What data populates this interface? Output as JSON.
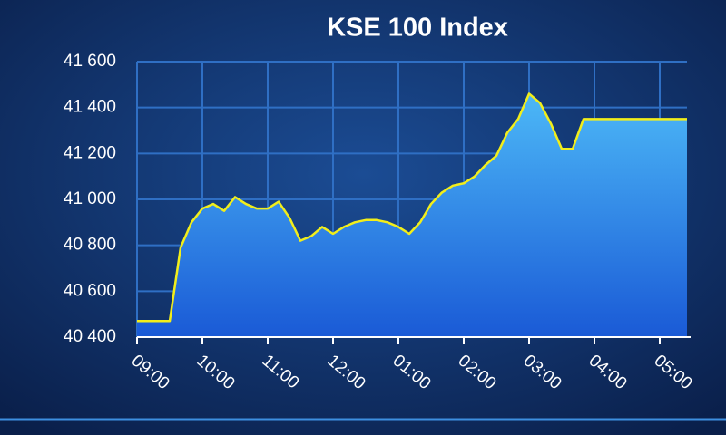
{
  "chart_data": {
    "type": "area",
    "title": "KSE 100 Index",
    "categories": [
      "09:00",
      null,
      null,
      null,
      null,
      null,
      "10:00",
      null,
      null,
      null,
      null,
      null,
      "11:00",
      null,
      null,
      null,
      null,
      null,
      "12:00",
      null,
      null,
      null,
      null,
      null,
      "01:00",
      null,
      null,
      null,
      null,
      null,
      "02:00",
      null,
      null,
      null,
      null,
      null,
      "03:00",
      null,
      null,
      null,
      null,
      null,
      "04:00",
      null,
      null,
      null,
      null,
      null,
      "05:00",
      null,
      null
    ],
    "series": [
      {
        "name": "KSE 100",
        "color": "#f2ee1a",
        "values": [
          40470,
          40470,
          40470,
          40470,
          40790,
          40900,
          40960,
          40980,
          40950,
          41010,
          40980,
          40960,
          40960,
          40990,
          40920,
          40820,
          40840,
          40880,
          40850,
          40880,
          40900,
          40910,
          40910,
          40900,
          40880,
          40850,
          40900,
          40980,
          41030,
          41060,
          41070,
          41100,
          41150,
          41190,
          41290,
          41350,
          41460,
          41420,
          41330,
          41220,
          41220,
          41350,
          41350,
          41350,
          41350,
          41350,
          41350,
          41350,
          41350,
          41350,
          41350
        ]
      }
    ],
    "ylim": [
      40400,
      41600
    ],
    "yticks": [
      {
        "value": 40400,
        "label": "40 400"
      },
      {
        "value": 40600,
        "label": "40 600"
      },
      {
        "value": 40800,
        "label": "40 800"
      },
      {
        "value": 41000,
        "label": "41 000"
      },
      {
        "value": 41200,
        "label": "41 200"
      },
      {
        "value": 41400,
        "label": "41 400"
      },
      {
        "value": 41600,
        "label": "41 600"
      }
    ],
    "grid": true
  }
}
